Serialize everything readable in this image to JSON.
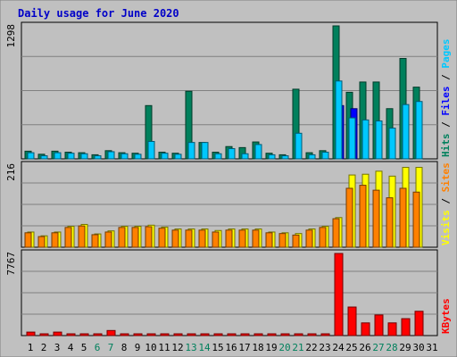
{
  "chart_data": {
    "type": "bar",
    "title": "Daily usage for June 2020",
    "days": [
      "1",
      "2",
      "3",
      "4",
      "5",
      "6",
      "7",
      "8",
      "9",
      "10",
      "11",
      "12",
      "13",
      "14",
      "15",
      "16",
      "17",
      "18",
      "19",
      "20",
      "21",
      "22",
      "23",
      "24",
      "25",
      "26",
      "27",
      "28",
      "29",
      "30",
      "31"
    ],
    "weekend_days": [
      "6",
      "7",
      "13",
      "14",
      "20",
      "21",
      "27",
      "28"
    ],
    "panels": [
      {
        "id": "hits",
        "max_label": "1298",
        "ymax": 1298,
        "side_labels": [
          {
            "text": "Hits",
            "color": "#00805c"
          },
          {
            "text": " / ",
            "color": "#000000"
          },
          {
            "text": "Files",
            "color": "#0000ff"
          },
          {
            "text": " / ",
            "color": "#000000"
          },
          {
            "text": "Pages",
            "color": "#00c8ff"
          }
        ],
        "series": [
          {
            "name": "Hits",
            "color": "#00805c",
            "values": [
              75,
              45,
              75,
              65,
              60,
              40,
              80,
              60,
              55,
              520,
              65,
              55,
              660,
              160,
              65,
              120,
              110,
              165,
              55,
              40,
              680,
              60,
              80,
              1298,
              650,
              750,
              750,
              490,
              980,
              700,
              0
            ]
          },
          {
            "name": "Files",
            "color": "#0000ff",
            "values": [
              0,
              0,
              0,
              0,
              0,
              0,
              0,
              0,
              0,
              0,
              0,
              0,
              0,
              0,
              0,
              0,
              0,
              0,
              0,
              0,
              0,
              0,
              0,
              520,
              490,
              0,
              0,
              0,
              0,
              0,
              0
            ]
          },
          {
            "name": "Pages",
            "color": "#00c8ff",
            "values": [
              60,
              30,
              60,
              55,
              50,
              30,
              70,
              50,
              45,
              170,
              55,
              45,
              160,
              160,
              50,
              100,
              50,
              140,
              40,
              30,
              250,
              40,
              65,
              760,
              400,
              380,
              370,
              300,
              530,
              560,
              0
            ]
          }
        ]
      },
      {
        "id": "visits",
        "max_label": "216",
        "ymax": 216,
        "side_labels": [
          {
            "text": "Visits",
            "color": "#ffff00"
          },
          {
            "text": " / ",
            "color": "#000000"
          },
          {
            "text": "Sites",
            "color": "#ff8000"
          }
        ],
        "series": [
          {
            "name": "Visits",
            "color": "#ffff00",
            "values": [
              40,
              30,
              40,
              55,
              60,
              35,
              43,
              55,
              55,
              58,
              53,
              48,
              48,
              48,
              44,
              48,
              48,
              48,
              40,
              38,
              36,
              48,
              55,
              78,
              190,
              192,
              200,
              187,
              210,
              210,
              0
            ]
          },
          {
            "name": "Sites",
            "color": "#ff8000",
            "values": [
              38,
              28,
              38,
              52,
              56,
              33,
              40,
              52,
              52,
              54,
              50,
              45,
              45,
              45,
              40,
              45,
              45,
              45,
              38,
              36,
              32,
              45,
              52,
              75,
              155,
              163,
              150,
              130,
              155,
              145,
              0
            ]
          }
        ]
      },
      {
        "id": "kbytes",
        "max_label": "7767",
        "ymax": 7767,
        "side_labels": [
          {
            "text": "KBytes",
            "color": "#ff0000"
          }
        ],
        "series": [
          {
            "name": "KBytes",
            "color": "#ff0000",
            "values": [
              330,
              70,
              330,
              60,
              60,
              60,
              480,
              60,
              60,
              80,
              60,
              60,
              100,
              60,
              60,
              60,
              60,
              60,
              140,
              60,
              90,
              80,
              60,
              7767,
              2700,
              1200,
              1950,
              1200,
              1600,
              2300,
              0
            ]
          }
        ]
      }
    ]
  }
}
